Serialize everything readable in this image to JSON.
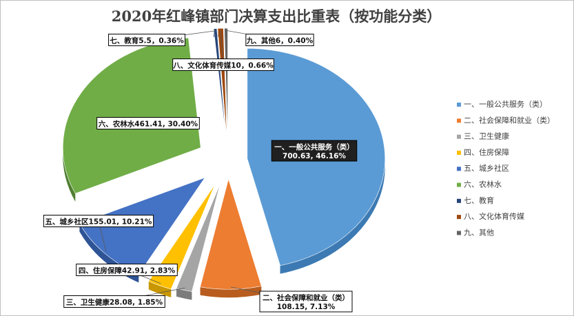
{
  "chart_data": {
    "type": "pie",
    "title": "2020年红峰镇部门决算支出比重表（按功能分类）",
    "series": [
      {
        "name": "一、一般公共服务（类）",
        "value": 700.63,
        "percent": "46.16%",
        "color": "#5b9bd5",
        "dark": "#3d7ab3",
        "label_lines": [
          "一、一般公共服务（类）",
          "700.63, 46.16%"
        ]
      },
      {
        "name": "二、社会保障和就业（类）",
        "value": 108.15,
        "percent": "7.13%",
        "color": "#ed7d31",
        "dark": "#b85d1f",
        "label_lines": [
          "二、社会保障和就业（类）",
          "108.15, 7.13%"
        ]
      },
      {
        "name": "三、卫生健康",
        "value": 28.08,
        "percent": "1.85%",
        "color": "#a5a5a5",
        "dark": "#7c7c7c",
        "label_lines": [
          "三、卫生健康28.08, 1.85%"
        ]
      },
      {
        "name": "四、住房保障",
        "value": 42.91,
        "percent": "2.83%",
        "color": "#ffc000",
        "dark": "#c79600",
        "label_lines": [
          "四、住房保障42.91, 2.83%"
        ]
      },
      {
        "name": "五、城乡社区",
        "value": 155.01,
        "percent": "10.21%",
        "color": "#4472c4",
        "dark": "#2e5496",
        "label_lines": [
          "五、城乡社区155.01, 10.21%"
        ]
      },
      {
        "name": "六、农林水",
        "value": 461.41,
        "percent": "30.40%",
        "color": "#70ad47",
        "dark": "#507f32",
        "label_lines": [
          "六、农林水461.41, 30.40%"
        ]
      },
      {
        "name": "七、教育",
        "value": 5.5,
        "percent": "0.36%",
        "color": "#264478",
        "dark": "#17305a",
        "label_lines": [
          "七、教育5.5，0.36%"
        ]
      },
      {
        "name": "八、文化体育传媒",
        "value": 10,
        "percent": "0.66%",
        "color": "#9e480e",
        "dark": "#6f3209",
        "label_lines": [
          "八、文化体育传媒10，0.66%"
        ]
      },
      {
        "name": "九、其他",
        "value": 6,
        "percent": "0.40%",
        "color": "#636363",
        "dark": "#444444",
        "label_lines": [
          "九、其他6，0.40%"
        ]
      }
    ],
    "legend_position": "right"
  }
}
